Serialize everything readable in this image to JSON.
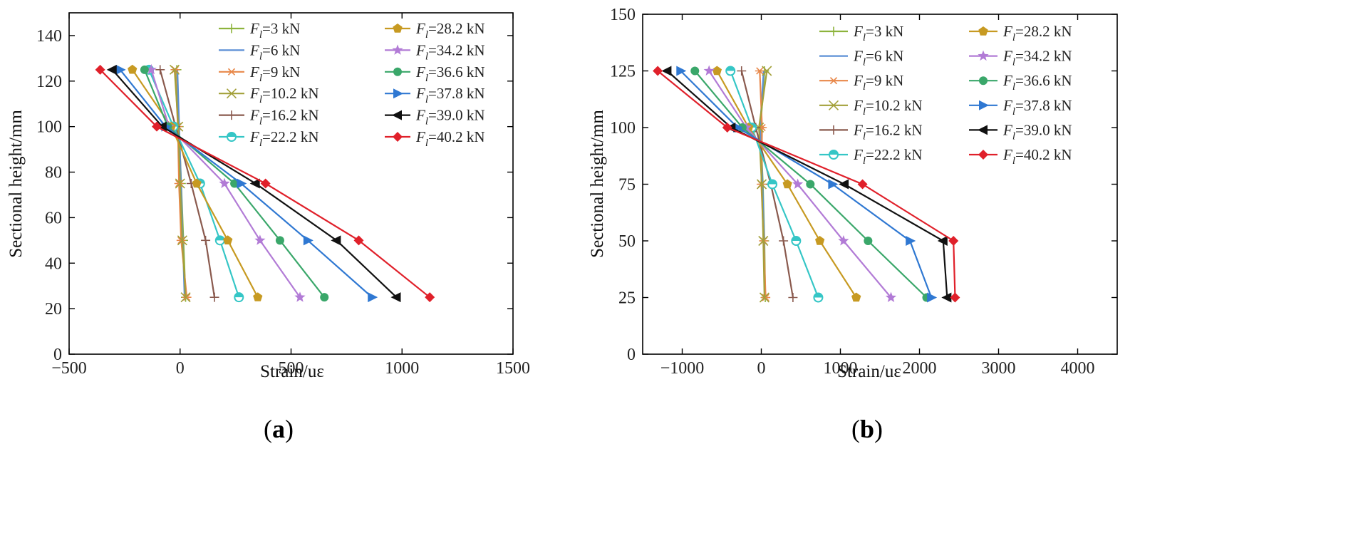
{
  "chart_data": [
    {
      "type": "line",
      "panel_label": "(a)",
      "panel_label_parts": [
        "(",
        "a",
        ")"
      ],
      "xlabel": "Strain/uε",
      "ylabel": "Sectional height/mm",
      "xlim": [
        -500,
        1500
      ],
      "ylim": [
        0,
        150
      ],
      "xticks": [
        -500,
        0,
        500,
        1000,
        1500
      ],
      "xtick_labels": [
        "−500",
        "0",
        "500",
        "1000",
        "1500"
      ],
      "yticks": [
        0,
        20,
        40,
        60,
        80,
        100,
        120,
        140
      ],
      "ytick_labels": [
        "0",
        "20",
        "40",
        "60",
        "80",
        "100",
        "120",
        "140"
      ],
      "y": [
        25,
        50,
        75,
        100,
        125
      ],
      "series": [
        {
          "name": "F_l=3 kN",
          "label_prefix": "F",
          "label_sub": "l",
          "label_rest": "=3 kN",
          "color": "#8db33c",
          "marker": "plus",
          "x": [
            25,
            15,
            5,
            -5,
            -15
          ]
        },
        {
          "name": "F_l=6 kN",
          "label_prefix": "F",
          "label_sub": "l",
          "label_rest": "=6 kN",
          "color": "#5b8fd6",
          "marker": "none",
          "x": [
            20,
            12,
            4,
            -4,
            -12
          ]
        },
        {
          "name": "F_l=9 kN",
          "label_prefix": "F",
          "label_sub": "l",
          "label_rest": "=9 kN",
          "color": "#e8884a",
          "marker": "asterisk",
          "x": [
            30,
            5,
            -5,
            -10,
            -22
          ]
        },
        {
          "name": "F_l=10.2 kN",
          "label_prefix": "F",
          "label_sub": "l",
          "label_rest": "=10.2 kN",
          "color": "#a3a03a",
          "marker": "x",
          "x": [
            25,
            10,
            0,
            -8,
            -25
          ]
        },
        {
          "name": "F_l=16.2 kN",
          "label_prefix": "F",
          "label_sub": "l",
          "label_rest": "=16.2 kN",
          "color": "#8a5a4e",
          "marker": "plus",
          "x": [
            155,
            115,
            50,
            -20,
            -90
          ]
        },
        {
          "name": "F_l=22.2 kN",
          "label_prefix": "F",
          "label_sub": "l",
          "label_rest": "=22.2 kN",
          "color": "#35c6c6",
          "marker": "circle-half",
          "x": [
            265,
            180,
            90,
            -30,
            -140
          ]
        },
        {
          "name": "F_l=28.2 kN",
          "label_prefix": "F",
          "label_sub": "l",
          "label_rest": "=28.2 kN",
          "color": "#c79a22",
          "marker": "pentagon",
          "x": [
            350,
            215,
            75,
            -40,
            -215
          ]
        },
        {
          "name": "F_l=34.2 kN",
          "label_prefix": "F",
          "label_sub": "l",
          "label_rest": "=34.2 kN",
          "color": "#b27bd6",
          "marker": "star",
          "x": [
            540,
            360,
            200,
            -50,
            -130
          ]
        },
        {
          "name": "F_l=36.6 kN",
          "label_prefix": "F",
          "label_sub": "l",
          "label_rest": "=36.6 kN",
          "color": "#3aa76a",
          "marker": "circle",
          "x": [
            650,
            450,
            245,
            -55,
            -160
          ]
        },
        {
          "name": "F_l=37.8 kN",
          "label_prefix": "F",
          "label_sub": "l",
          "label_rest": "=37.8 kN",
          "color": "#2f78d2",
          "marker": "tri-right",
          "x": [
            865,
            575,
            275,
            -65,
            -270
          ]
        },
        {
          "name": "F_l=39.0 kN",
          "label_prefix": "F",
          "label_sub": "l",
          "label_rest": "=39.0 kN",
          "color": "#111111",
          "marker": "tri-left",
          "x": [
            975,
            705,
            340,
            -80,
            -305
          ]
        },
        {
          "name": "F_l=40.2 kN",
          "label_prefix": "F",
          "label_sub": "l",
          "label_rest": "=40.2 kN",
          "color": "#e0202a",
          "marker": "diamond",
          "x": [
            1125,
            805,
            385,
            -105,
            -360
          ]
        }
      ]
    },
    {
      "type": "line",
      "panel_label": "(b)",
      "panel_label_parts": [
        "(",
        "b",
        ")"
      ],
      "xlabel": "Strain/uε",
      "ylabel": "Sectional height/mm",
      "xlim": [
        -1500,
        4500
      ],
      "ylim": [
        0,
        150
      ],
      "xticks": [
        -1000,
        0,
        1000,
        2000,
        3000,
        4000
      ],
      "xtick_labels": [
        "−1000",
        "0",
        "1000",
        "2000",
        "3000",
        "4000"
      ],
      "yticks": [
        0,
        25,
        50,
        75,
        100,
        125,
        150
      ],
      "ytick_labels": [
        "0",
        "25",
        "50",
        "75",
        "100",
        "125",
        "150"
      ],
      "y": [
        25,
        50,
        75,
        100,
        125
      ],
      "series": [
        {
          "name": "F_l=3 kN",
          "label_prefix": "F",
          "label_sub": "l",
          "label_rest": "=3 kN",
          "color": "#8db33c",
          "marker": "plus",
          "x": [
            50,
            40,
            20,
            -10,
            40
          ]
        },
        {
          "name": "F_l=6 kN",
          "label_prefix": "F",
          "label_sub": "l",
          "label_rest": "=6 kN",
          "color": "#5b8fd6",
          "marker": "none",
          "x": [
            45,
            35,
            15,
            -15,
            30
          ]
        },
        {
          "name": "F_l=9 kN",
          "label_prefix": "F",
          "label_sub": "l",
          "label_rest": "=9 kN",
          "color": "#e8884a",
          "marker": "asterisk",
          "x": [
            55,
            30,
            0,
            10,
            -20
          ]
        },
        {
          "name": "F_l=10.2 kN",
          "label_prefix": "F",
          "label_sub": "l",
          "label_rest": "=10.2 kN",
          "color": "#a3a03a",
          "marker": "x",
          "x": [
            40,
            25,
            5,
            -30,
            70
          ]
        },
        {
          "name": "F_l=16.2 kN",
          "label_prefix": "F",
          "label_sub": "l",
          "label_rest": "=16.2 kN",
          "color": "#8a5a4e",
          "marker": "plus",
          "x": [
            400,
            280,
            120,
            -70,
            -250
          ]
        },
        {
          "name": "F_l=22.2 kN",
          "label_prefix": "F",
          "label_sub": "l",
          "label_rest": "=22.2 kN",
          "color": "#35c6c6",
          "marker": "circle-half",
          "x": [
            720,
            440,
            140,
            -120,
            -390
          ]
        },
        {
          "name": "F_l=28.2 kN",
          "label_prefix": "F",
          "label_sub": "l",
          "label_rest": "=28.2 kN",
          "color": "#c79a22",
          "marker": "pentagon",
          "x": [
            1200,
            740,
            330,
            -160,
            -560
          ]
        },
        {
          "name": "F_l=34.2 kN",
          "label_prefix": "F",
          "label_sub": "l",
          "label_rest": "=34.2 kN",
          "color": "#b27bd6",
          "marker": "star",
          "x": [
            1640,
            1040,
            460,
            -190,
            -660
          ]
        },
        {
          "name": "F_l=36.6 kN",
          "label_prefix": "F",
          "label_sub": "l",
          "label_rest": "=36.6 kN",
          "color": "#3aa76a",
          "marker": "circle",
          "x": [
            2090,
            1350,
            620,
            -240,
            -840
          ]
        },
        {
          "name": "F_l=37.8 kN",
          "label_prefix": "F",
          "label_sub": "l",
          "label_rest": "=37.8 kN",
          "color": "#2f78d2",
          "marker": "tri-right",
          "x": [
            2150,
            1880,
            900,
            -300,
            -1020
          ]
        },
        {
          "name": "F_l=39.0 kN",
          "label_prefix": "F",
          "label_sub": "l",
          "label_rest": "=39.0 kN",
          "color": "#111111",
          "marker": "tri-left",
          "x": [
            2350,
            2300,
            1050,
            -380,
            -1190
          ]
        },
        {
          "name": "F_l=40.2 kN",
          "label_prefix": "F",
          "label_sub": "l",
          "label_rest": "=40.2 kN",
          "color": "#e0202a",
          "marker": "diamond",
          "x": [
            2450,
            2430,
            1280,
            -430,
            -1310
          ]
        }
      ]
    }
  ]
}
